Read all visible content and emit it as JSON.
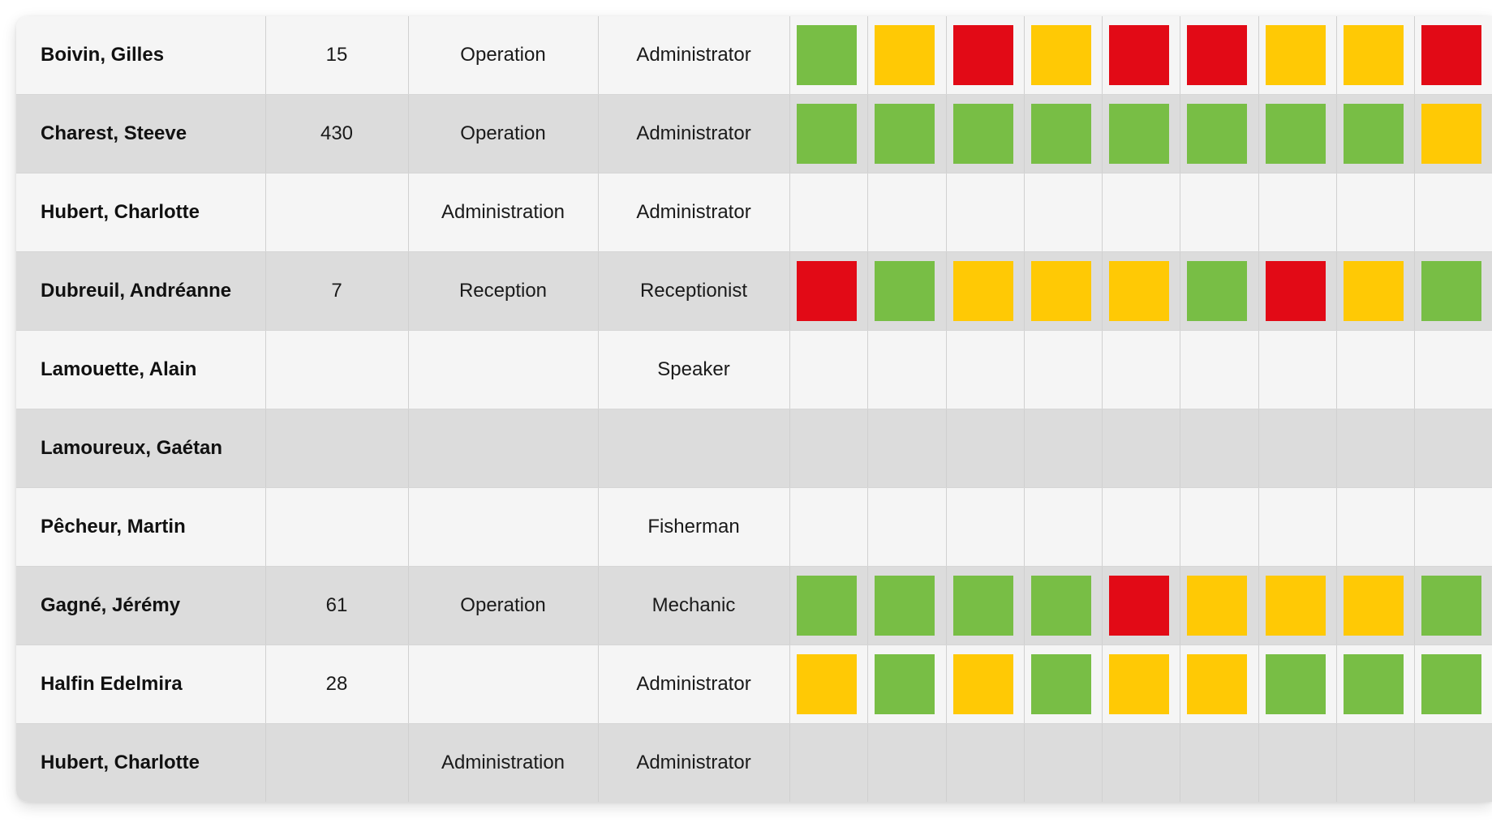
{
  "colors": {
    "green": "#78be45",
    "yellow": "#ffc905",
    "red": "#e20a16"
  },
  "rows": [
    {
      "name": "Boivin, Gilles",
      "number": "15",
      "department": "Operation",
      "role": "Administrator",
      "statuses": [
        "green",
        "yellow",
        "red",
        "yellow",
        "red",
        "red",
        "yellow",
        "yellow",
        "red"
      ]
    },
    {
      "name": "Charest, Steeve",
      "number": "430",
      "department": "Operation",
      "role": "Administrator",
      "statuses": [
        "green",
        "green",
        "green",
        "green",
        "green",
        "green",
        "green",
        "green",
        "yellow"
      ]
    },
    {
      "name": "Hubert, Charlotte",
      "number": "",
      "department": "Administration",
      "role": "Administrator",
      "statuses": [
        "none",
        "none",
        "none",
        "none",
        "none",
        "none",
        "none",
        "none",
        "none"
      ]
    },
    {
      "name": "Dubreuil, Andréanne",
      "number": "7",
      "department": "Reception",
      "role": "Receptionist",
      "statuses": [
        "red",
        "green",
        "yellow",
        "yellow",
        "yellow",
        "green",
        "red",
        "yellow",
        "green"
      ]
    },
    {
      "name": "Lamouette, Alain",
      "number": "",
      "department": "",
      "role": "Speaker",
      "statuses": [
        "none",
        "none",
        "none",
        "none",
        "none",
        "none",
        "none",
        "none",
        "none"
      ]
    },
    {
      "name": "Lamoureux, Gaétan",
      "number": "",
      "department": "",
      "role": "",
      "statuses": [
        "none",
        "none",
        "none",
        "none",
        "none",
        "none",
        "none",
        "none",
        "none"
      ]
    },
    {
      "name": "Pêcheur, Martin",
      "number": "",
      "department": "",
      "role": "Fisherman",
      "statuses": [
        "none",
        "none",
        "none",
        "none",
        "none",
        "none",
        "none",
        "none",
        "none"
      ]
    },
    {
      "name": "Gagné, Jérémy",
      "number": "61",
      "department": "Operation",
      "role": "Mechanic",
      "statuses": [
        "green",
        "green",
        "green",
        "green",
        "red",
        "yellow",
        "yellow",
        "yellow",
        "green"
      ]
    },
    {
      "name": "Halfin Edelmira",
      "number": "28",
      "department": "",
      "role": "Administrator",
      "statuses": [
        "yellow",
        "green",
        "yellow",
        "green",
        "yellow",
        "yellow",
        "green",
        "green",
        "green"
      ]
    },
    {
      "name": "Hubert, Charlotte",
      "number": "",
      "department": "Administration",
      "role": "Administrator",
      "statuses": [
        "none",
        "none",
        "none",
        "none",
        "none",
        "none",
        "none",
        "none",
        "none"
      ]
    }
  ]
}
